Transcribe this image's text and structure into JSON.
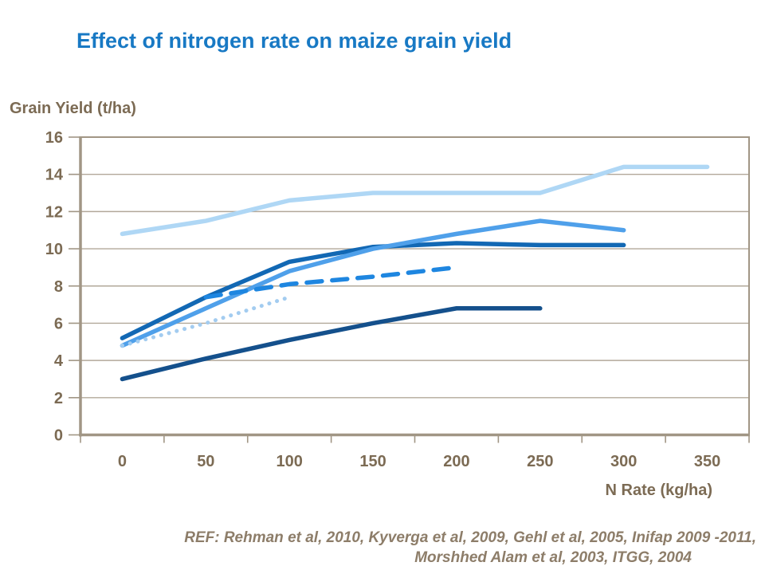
{
  "title": "Effect of nitrogen rate on maize grain yield",
  "colors": {
    "title": "#1879c4",
    "axis_text": "#7c6b54",
    "axis_line": "#a19685",
    "grid": "#b2a89a",
    "ref_text": "#8d7d69"
  },
  "ref": {
    "line1": "REF: Rehman et al, 2010, Kyverga et al, 2009, Gehl et al, 2005, Inifap 2009 -2011,",
    "line2": "Morshhed Alam et al, 2003, ITGG, 2004"
  },
  "chart_data": {
    "type": "line",
    "title": "Effect of nitrogen rate on maize grain yield",
    "xlabel": "N Rate (kg/ha)",
    "ylabel": "Grain Yield (t/ha)",
    "x_ticks": [
      0,
      50,
      100,
      150,
      200,
      250,
      300,
      350
    ],
    "y_ticks": [
      0,
      2,
      4,
      6,
      8,
      10,
      12,
      14,
      16
    ],
    "ylim": [
      0,
      16
    ],
    "grid": "horizontal",
    "legend": "none",
    "series": [
      {
        "name": "light-blue-line",
        "color": "#AFD7F5",
        "style": "solid",
        "x": [
          0,
          50,
          100,
          150,
          200,
          250,
          300,
          350
        ],
        "values": [
          10.8,
          11.5,
          12.6,
          13.0,
          13.0,
          13.0,
          14.4,
          14.4
        ]
      },
      {
        "name": "navy-line",
        "color": "#14508C",
        "style": "solid",
        "x": [
          0,
          50,
          100,
          150,
          200,
          250
        ],
        "values": [
          3.0,
          4.1,
          5.1,
          6.0,
          6.8,
          6.8
        ]
      },
      {
        "name": "dark-blue-line",
        "color": "#1268B4",
        "style": "solid",
        "x": [
          0,
          50,
          100,
          150,
          200,
          250,
          300
        ],
        "values": [
          5.2,
          7.4,
          9.3,
          10.1,
          10.3,
          10.2,
          10.2
        ]
      },
      {
        "name": "medium-blue-line",
        "color": "#4FA0EA",
        "style": "solid",
        "x": [
          0,
          50,
          100,
          150,
          200,
          250,
          300
        ],
        "values": [
          4.8,
          6.8,
          8.8,
          10.0,
          10.8,
          11.5,
          11.0
        ]
      },
      {
        "name": "dotted-pale-blue-line",
        "color": "#A3CCF0",
        "style": "dotted",
        "x": [
          0,
          50,
          100
        ],
        "values": [
          4.8,
          6.0,
          7.4
        ]
      },
      {
        "name": "dashed-blue-line",
        "color": "#1E86E0",
        "style": "dashed",
        "x": [
          50,
          100,
          150,
          200
        ],
        "values": [
          7.4,
          8.1,
          8.5,
          9.0
        ]
      }
    ]
  }
}
